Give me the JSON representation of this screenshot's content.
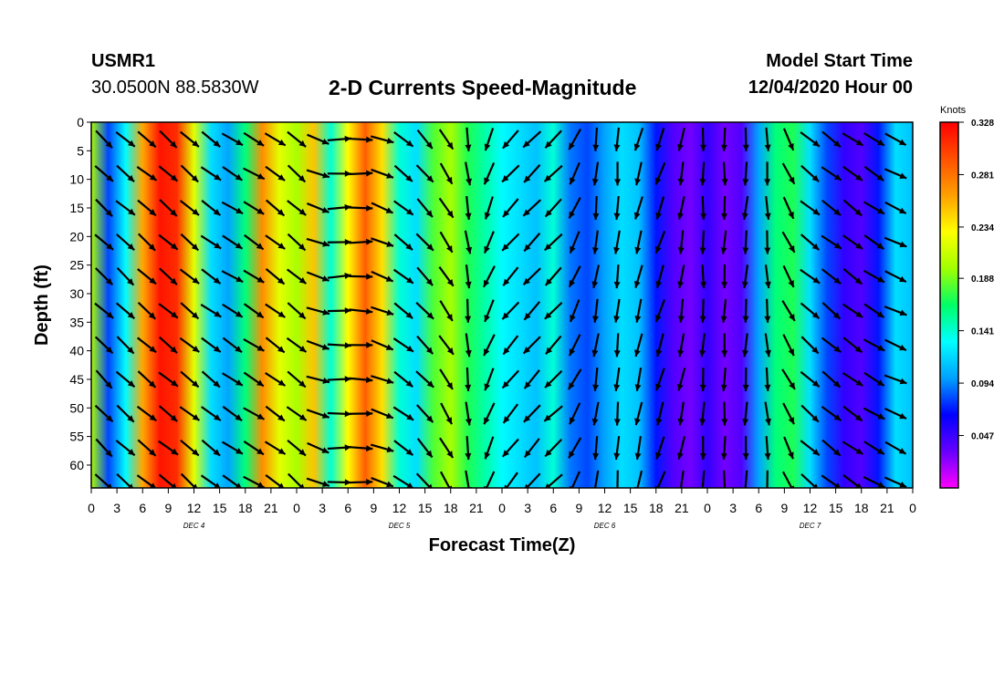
{
  "header": {
    "station_id": "USMR1",
    "coords": "30.0500N 88.5830W",
    "title": "2-D Currents Speed-Magnitude",
    "model_label": "Model Start Time",
    "model_time": "12/04/2020 Hour 00"
  },
  "chart_data": {
    "type": "heatmap",
    "title": "2-D Currents Speed-Magnitude",
    "xlabel": "Forecast Time(Z)",
    "ylabel": "Depth (ft)",
    "x_tick_labels": [
      "0",
      "3",
      "6",
      "9",
      "12",
      "15",
      "18",
      "21",
      "0",
      "3",
      "6",
      "9",
      "12",
      "15",
      "18",
      "21",
      "0",
      "3",
      "6",
      "9",
      "12",
      "15",
      "18",
      "21",
      "0",
      "3",
      "6",
      "9",
      "12",
      "15",
      "18",
      "21",
      "0"
    ],
    "day_labels": [
      "DEC 4",
      "DEC 5",
      "DEC 6",
      "DEC 7"
    ],
    "x_range_hours": [
      0,
      96
    ],
    "y_tick_labels": [
      "0",
      "5",
      "10",
      "15",
      "20",
      "25",
      "30",
      "35",
      "40",
      "45",
      "50",
      "55",
      "60"
    ],
    "y_range_ft": [
      0,
      64
    ],
    "y_inverted": true,
    "colorbar": {
      "unit_label": "Knots",
      "tick_labels": [
        "0.328",
        "0.281",
        "0.234",
        "0.188",
        "0.141",
        "0.094",
        "0.047"
      ],
      "range": [
        0,
        0.328
      ],
      "colors": [
        "#ff00ff",
        "#6600ff",
        "#0000ff",
        "#00a0ff",
        "#00ffff",
        "#00ff66",
        "#a0ff00",
        "#ffff00",
        "#ffa000",
        "#ff5000",
        "#ff0000"
      ]
    },
    "speed_profile": {
      "hours": [
        0,
        2,
        4,
        6,
        8,
        10,
        12,
        14,
        16,
        18,
        20,
        22,
        24,
        26,
        28,
        30,
        32,
        34,
        36,
        38,
        40,
        42,
        44,
        46,
        48,
        50,
        52,
        54,
        56,
        58,
        60,
        62,
        64,
        66,
        68,
        70,
        72,
        74,
        76,
        78,
        80,
        82,
        84,
        86,
        88,
        90,
        92,
        94,
        96
      ],
      "knots": [
        0.2,
        0.08,
        0.13,
        0.26,
        0.32,
        0.31,
        0.22,
        0.12,
        0.1,
        0.16,
        0.27,
        0.22,
        0.2,
        0.25,
        0.14,
        0.23,
        0.29,
        0.24,
        0.14,
        0.12,
        0.18,
        0.2,
        0.17,
        0.15,
        0.13,
        0.12,
        0.11,
        0.14,
        0.09,
        0.08,
        0.1,
        0.12,
        0.11,
        0.07,
        0.04,
        0.03,
        0.05,
        0.03,
        0.04,
        0.1,
        0.16,
        0.17,
        0.12,
        0.08,
        0.05,
        0.04,
        0.07,
        0.12,
        0.11
      ]
    },
    "vector_directions": {
      "hours": [
        0,
        6,
        12,
        18,
        24,
        30,
        36,
        42,
        48,
        54,
        60,
        66,
        72,
        78,
        84,
        90,
        96
      ],
      "angle_deg": [
        -45,
        -40,
        -40,
        -30,
        -40,
        10,
        -35,
        -60,
        -130,
        -135,
        -90,
        -110,
        -90,
        -95,
        -40,
        -35,
        -20
      ]
    }
  }
}
